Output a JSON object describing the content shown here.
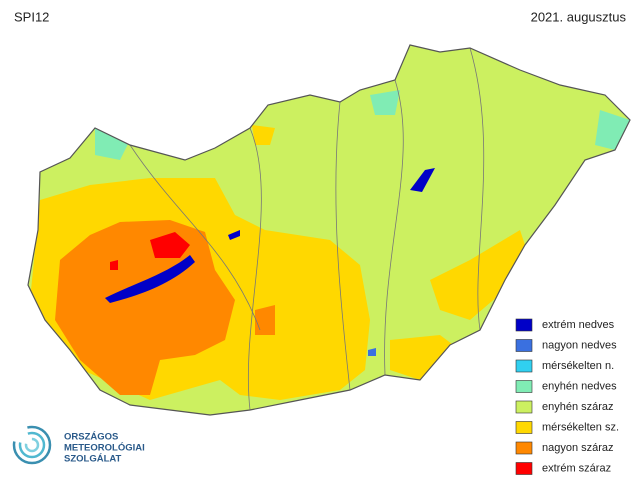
{
  "header": {
    "title": "SPI12",
    "date": "2021. augusztus"
  },
  "legend": {
    "items": [
      {
        "label": "extrém nedves",
        "color": "#0000c8"
      },
      {
        "label": "nagyon nedves",
        "color": "#3a70e0"
      },
      {
        "label": "mérsékelten n.",
        "color": "#30d0f0"
      },
      {
        "label": "enyhén nedves",
        "color": "#80ecb4"
      },
      {
        "label": "enyhén száraz",
        "color": "#ccf060"
      },
      {
        "label": "mérsékelten sz.",
        "color": "#ffd800"
      },
      {
        "label": "nagyon száraz",
        "color": "#ff8800"
      },
      {
        "label": "extrém száraz",
        "color": "#ff0000"
      }
    ]
  },
  "logo": {
    "lines": [
      "ORSZÁGOS",
      "METEOROLÓGIAI",
      "SZOLGÁLAT"
    ]
  }
}
